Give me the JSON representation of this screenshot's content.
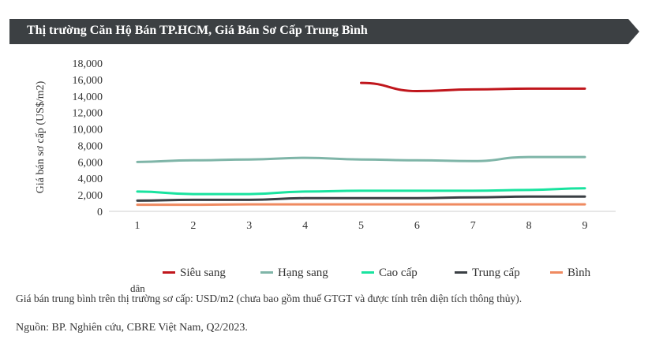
{
  "header": {
    "title": "Thị trường Căn Hộ Bán TP.HCM, Giá Bán Sơ Cấp Trung Bình",
    "bg_color": "#3c4043"
  },
  "chart_data": {
    "type": "line",
    "title": "Thị trường Căn Hộ Bán TP.HCM, Giá Bán Sơ Cấp Trung Bình",
    "xlabel": "",
    "ylabel": "Giá bán sơ cấp (US$/m2)",
    "x": [
      1,
      2,
      3,
      4,
      5,
      6,
      7,
      8,
      9
    ],
    "ylim": [
      0,
      18000
    ],
    "yticks": [
      "0",
      "2,000",
      "4,000",
      "6,000",
      "8,000",
      "10,000",
      "12,000",
      "14,000",
      "16,000",
      "18,000"
    ],
    "grid": false,
    "legend_position": "bottom",
    "series": [
      {
        "name": "Siêu sang",
        "color": "#c0161c",
        "values": [
          null,
          null,
          null,
          null,
          15600,
          14600,
          14800,
          14900,
          14900
        ]
      },
      {
        "name": "Hạng sang",
        "color": "#7fb5a8",
        "values": [
          6000,
          6200,
          6300,
          6500,
          6300,
          6200,
          6100,
          6600,
          6600
        ]
      },
      {
        "name": "Cao cấp",
        "color": "#19e39f",
        "values": [
          2400,
          2100,
          2100,
          2400,
          2500,
          2500,
          2500,
          2600,
          2800
        ]
      },
      {
        "name": "Trung cấp",
        "color": "#3a3f44",
        "values": [
          1300,
          1400,
          1400,
          1600,
          1600,
          1600,
          1700,
          1800,
          1800
        ]
      },
      {
        "name": "Bình dân",
        "color": "#ef8a60",
        "values": [
          800,
          800,
          850,
          850,
          850,
          850,
          850,
          850,
          850
        ]
      }
    ]
  },
  "legend_items": [
    {
      "label": "Siêu sang"
    },
    {
      "label": "Hạng sang"
    },
    {
      "label": "Cao cấp"
    },
    {
      "label": "Trung cấp"
    },
    {
      "label": "Bình"
    }
  ],
  "legend_overflow": "dân",
  "note": "Giá bán trung bình trên thị trường sơ cấp: USD/m2 (chưa bao gồm thuế GTGT và được tính trên diện tích thông thủy).",
  "source": "Nguồn: BP. Nghiên cứu, CBRE Việt Nam, Q2/2023."
}
